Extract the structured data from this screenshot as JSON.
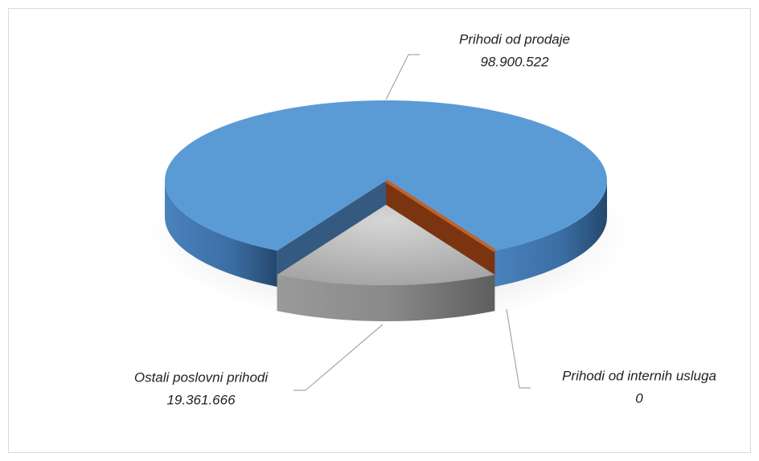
{
  "chart_data": {
    "type": "pie",
    "categories": [
      "Prihodi od prodaje",
      "Prihodi od internih usluga",
      "Ostali poslovni prihodi"
    ],
    "values": [
      98900522,
      0,
      19361666
    ],
    "value_labels": [
      "98.900.522",
      "0",
      "19.361.666"
    ],
    "colors": [
      "#5b9bd5",
      "#c0622a",
      "#a5a5a5"
    ]
  }
}
